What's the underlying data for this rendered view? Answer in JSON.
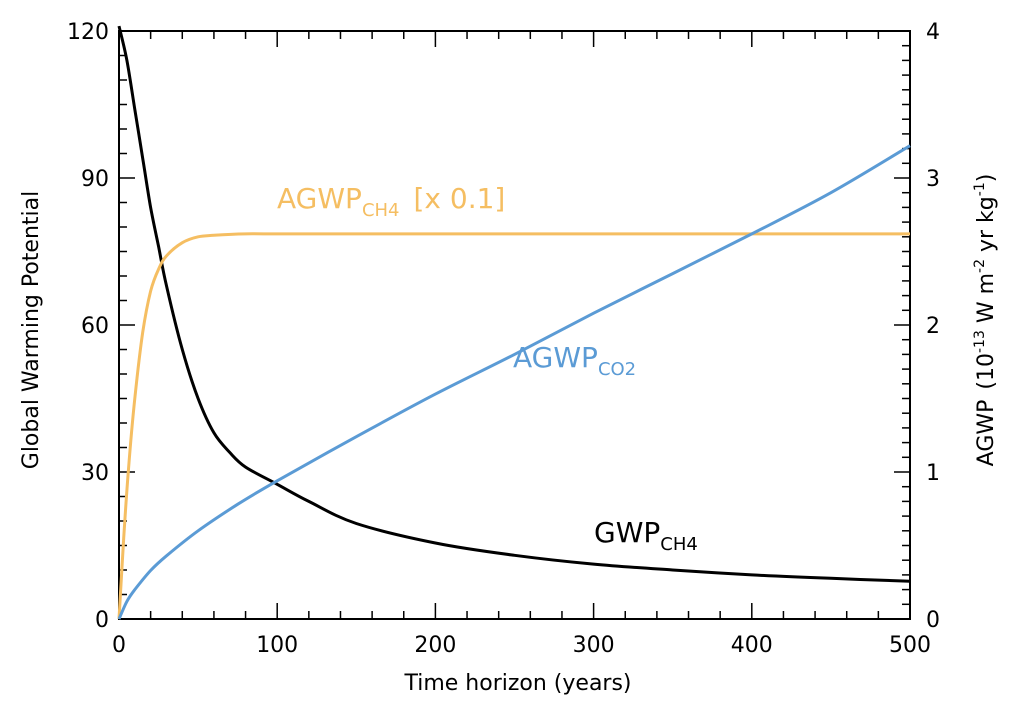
{
  "chart_data": {
    "type": "line",
    "xlabel": "Time horizon (years)",
    "ylabel_left": "Global Warming Potential",
    "ylabel_right": {
      "text": "AGWP",
      "unit_open": "(10",
      "unit_exp1": "-13",
      "unit_mid1": " W m",
      "unit_exp2": "-2",
      "unit_mid2": " yr kg",
      "unit_exp3": "-1",
      "unit_close": ")"
    },
    "xlim": [
      0,
      500
    ],
    "ylim_left": [
      0,
      120
    ],
    "ylim_right": [
      0,
      4
    ],
    "x_ticks": [
      "0",
      "100",
      "200",
      "300",
      "400",
      "500"
    ],
    "y_ticks_left": [
      "0",
      "30",
      "60",
      "90",
      "120"
    ],
    "y_ticks_right": [
      "0",
      "1",
      "2",
      "3",
      "4"
    ],
    "grid": false,
    "series": [
      {
        "name": "GWP",
        "name_sub": "CH4",
        "color": "#000000",
        "axis": "left",
        "x": [
          0,
          5,
          10,
          15,
          20,
          25,
          30,
          40,
          50,
          60,
          70,
          80,
          100,
          120,
          150,
          200,
          250,
          300,
          350,
          400,
          450,
          500
        ],
        "y": [
          121,
          114,
          104,
          94,
          84,
          76,
          68,
          55,
          45,
          38,
          34,
          31,
          27.5,
          24,
          19.5,
          15.5,
          13,
          11.2,
          10,
          9,
          8.3,
          7.7
        ]
      },
      {
        "name": "AGWP",
        "name_sub": "CH4",
        "name_suffix": "[x 0.1]",
        "color": "#F5BE62",
        "axis": "right",
        "x": [
          0,
          3,
          6,
          10,
          15,
          20,
          25,
          30,
          40,
          50,
          60,
          80,
          100,
          200,
          300,
          400,
          500
        ],
        "y": [
          0,
          0.55,
          1.02,
          1.5,
          1.95,
          2.23,
          2.38,
          2.47,
          2.56,
          2.6,
          2.61,
          2.62,
          2.62,
          2.62,
          2.62,
          2.62,
          2.62
        ]
      },
      {
        "name": "AGWP",
        "name_sub": "CO2",
        "color": "#5B9BD5",
        "axis": "right",
        "x": [
          0,
          5,
          10,
          20,
          30,
          50,
          75,
          100,
          150,
          200,
          250,
          300,
          350,
          400,
          450,
          500
        ],
        "y": [
          0,
          0.12,
          0.2,
          0.33,
          0.43,
          0.6,
          0.78,
          0.94,
          1.24,
          1.53,
          1.8,
          2.08,
          2.35,
          2.62,
          2.9,
          3.22
        ]
      }
    ]
  }
}
